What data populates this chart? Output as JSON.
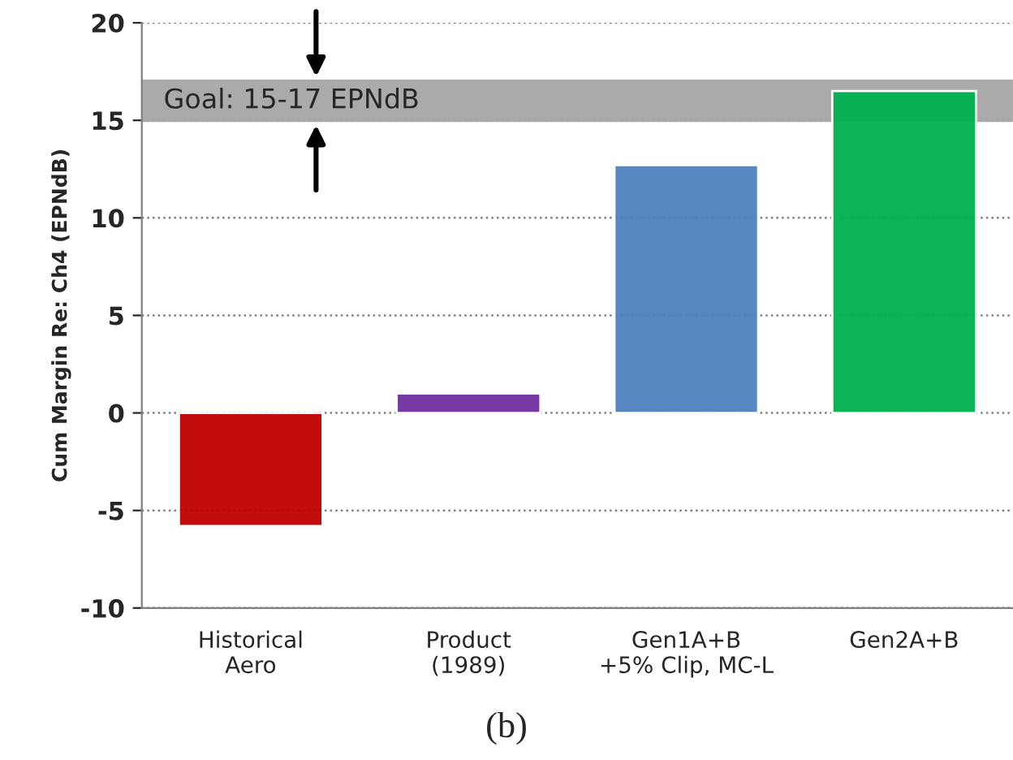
{
  "chart_data": {
    "type": "bar",
    "ylabel": "Cum Margin Re: Ch4 (EPNdB)",
    "categories": [
      "Historical\nAero",
      "Product\n(1989)",
      "Gen1A+B\n+5% Clip, MC-L",
      "Gen2A+B"
    ],
    "values": [
      -5.8,
      1.0,
      12.7,
      16.5
    ],
    "colors": [
      "#c00000",
      "#7030a0",
      "#4f81bd",
      "#00b050"
    ],
    "ylim": [
      -10,
      20
    ],
    "yticks": [
      -10,
      -5,
      0,
      5,
      10,
      15,
      20
    ],
    "grid": "y",
    "bands": [
      {
        "axis": "y",
        "from": 15,
        "to": 17,
        "label": "Goal: 15-17 EPNdB",
        "color": "#a6a6a6"
      }
    ],
    "annotations": [
      "(b)"
    ]
  }
}
